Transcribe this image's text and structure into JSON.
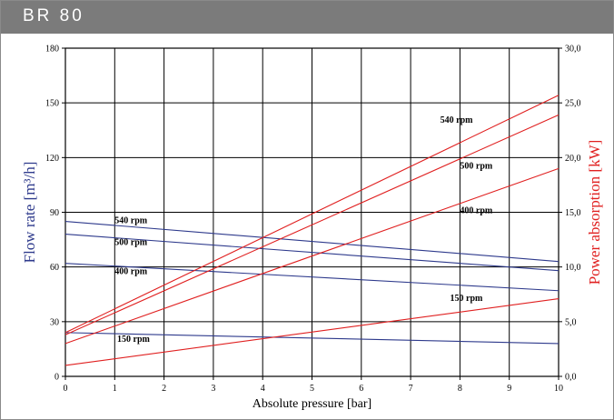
{
  "header": {
    "title": "BR 80"
  },
  "chart_data": {
    "type": "line",
    "xlabel": "Absolute pressure [bar]",
    "ylabel_left": "Flow rate [m³/h]",
    "ylabel_right": "Power absorption [kW]",
    "xlim": [
      0,
      10
    ],
    "ylim_left": [
      0,
      180
    ],
    "ylim_right": [
      0,
      30
    ],
    "x_ticks": [
      "0",
      "1",
      "2",
      "3",
      "4",
      "5",
      "6",
      "7",
      "8",
      "9",
      "10"
    ],
    "y_left_ticks": [
      "0",
      "30",
      "60",
      "90",
      "120",
      "150",
      "180"
    ],
    "y_right_ticks": [
      "0,0",
      "5,0",
      "10,0",
      "15,0",
      "20,0",
      "25,0",
      "30,0"
    ],
    "grid": true,
    "colors": {
      "flow": "#2e3a8c",
      "power": "#e02020"
    },
    "flow_series": [
      {
        "name": "540 rpm",
        "axis": "left",
        "x": [
          0,
          10
        ],
        "y": [
          85,
          63
        ]
      },
      {
        "name": "500 rpm",
        "axis": "left",
        "x": [
          0,
          10
        ],
        "y": [
          78,
          58
        ]
      },
      {
        "name": "400 rpm",
        "axis": "left",
        "x": [
          0,
          10
        ],
        "y": [
          62,
          47
        ]
      },
      {
        "name": "150 rpm",
        "axis": "left",
        "x": [
          0,
          10
        ],
        "y": [
          24,
          18
        ]
      }
    ],
    "power_series": [
      {
        "name": "540 rpm",
        "axis": "right",
        "x": [
          0,
          10
        ],
        "y": [
          4.0,
          25.7
        ]
      },
      {
        "name": "500 rpm",
        "axis": "right",
        "x": [
          0,
          10
        ],
        "y": [
          3.8,
          23.9
        ]
      },
      {
        "name": "400 rpm",
        "axis": "right",
        "x": [
          0,
          10
        ],
        "y": [
          3.0,
          19.0
        ]
      },
      {
        "name": "150 rpm",
        "axis": "right",
        "x": [
          0,
          10
        ],
        "y": [
          1.0,
          7.1
        ]
      }
    ],
    "annotations": [
      {
        "text": "540 rpm",
        "x": 1.0,
        "y": 84,
        "axis": "left"
      },
      {
        "text": "500 rpm",
        "x": 1.0,
        "y": 72,
        "axis": "left"
      },
      {
        "text": "400 rpm",
        "x": 1.0,
        "y": 56,
        "axis": "left"
      },
      {
        "text": "150 rpm",
        "x": 1.05,
        "y": 19,
        "axis": "left"
      },
      {
        "text": "540 rpm",
        "x": 7.6,
        "y": 23.2,
        "axis": "right"
      },
      {
        "text": "500 rpm",
        "x": 8.0,
        "y": 19.0,
        "axis": "right"
      },
      {
        "text": "400 rpm",
        "x": 8.0,
        "y": 14.9,
        "axis": "right"
      },
      {
        "text": "150 rpm",
        "x": 7.8,
        "y": 6.9,
        "axis": "right"
      }
    ]
  }
}
